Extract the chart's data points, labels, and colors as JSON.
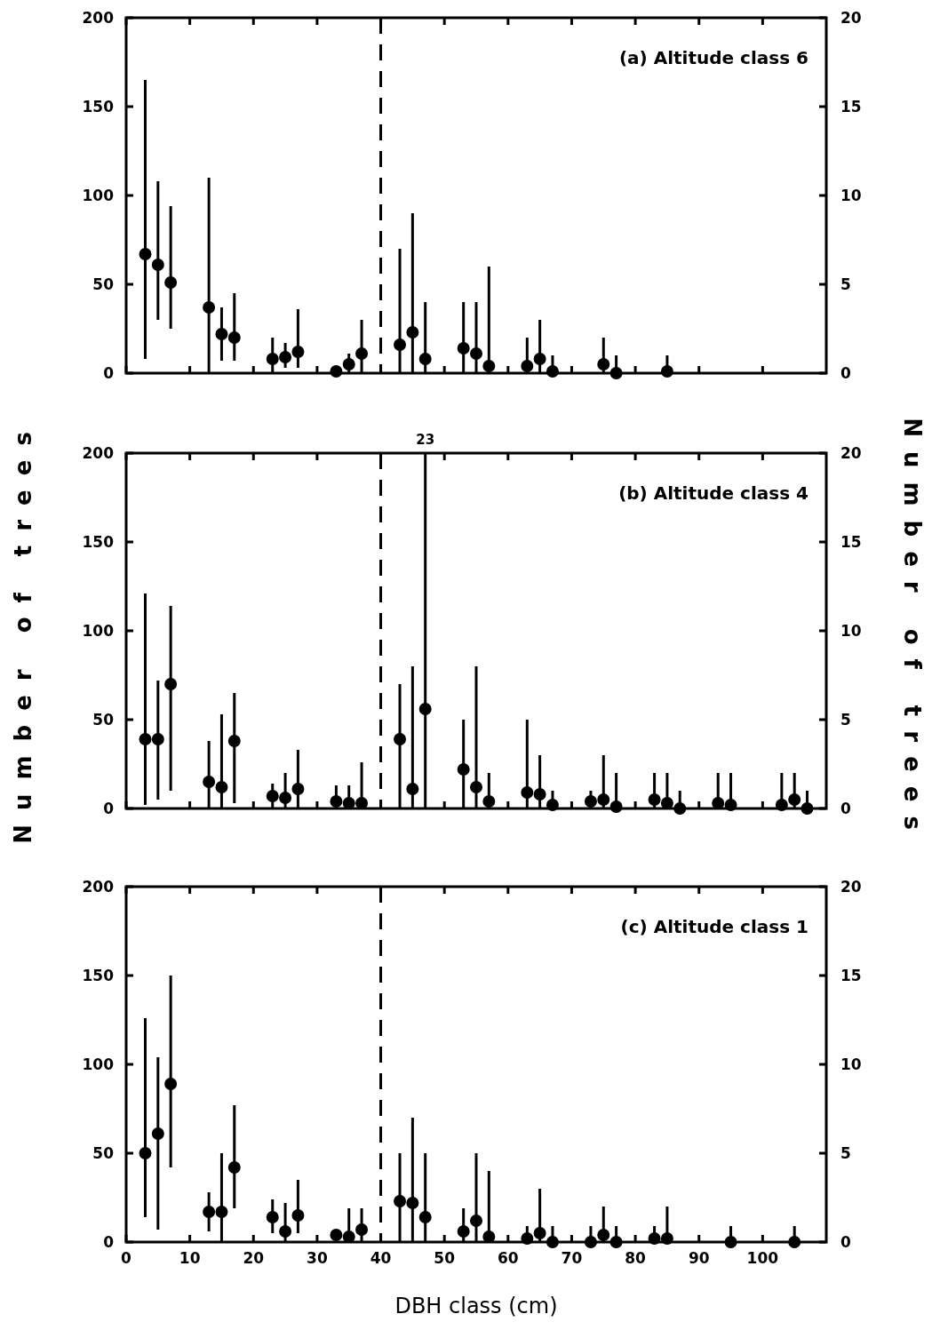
{
  "chart_data": [
    {
      "type": "scatter",
      "title": "(a) Altitude class 6",
      "xlim": [
        0,
        110
      ],
      "xticks": [
        0,
        10,
        20,
        30,
        40,
        50,
        60,
        70,
        80,
        90,
        100
      ],
      "ylim": [
        0,
        200
      ],
      "yticks": [
        0,
        50,
        100,
        150,
        200
      ],
      "y2lim": [
        0,
        20
      ],
      "y2ticks": [
        0,
        5,
        10,
        15,
        20
      ],
      "tick_labels": "y",
      "grid": false,
      "marker": "circle",
      "ref_lines": [
        {
          "axis": "x",
          "value": 40,
          "line_style": "dashed",
          "color": "#000000"
        }
      ],
      "series": [
        {
          "color": "#000000",
          "x": [
            3,
            5,
            7,
            13,
            15,
            17,
            23,
            25,
            27,
            33,
            35,
            37
          ],
          "values": [
            67,
            61,
            51,
            37,
            22,
            20,
            8,
            9,
            12,
            1,
            5,
            11
          ],
          "errors": [
            [
              8,
              165
            ],
            [
              30,
              108
            ],
            [
              25,
              94
            ],
            [
              0,
              110
            ],
            [
              7,
              37
            ],
            [
              7,
              45
            ],
            [
              0,
              20
            ],
            [
              3,
              17
            ],
            [
              3,
              36
            ],
            [
              1,
              3
            ],
            [
              0,
              11
            ],
            [
              0,
              30
            ]
          ]
        },
        {
          "color": "#000000",
          "axis": "y2",
          "x": [
            43,
            45,
            47,
            53,
            55,
            57,
            63,
            65,
            67,
            75,
            77,
            85
          ],
          "values": [
            1.6,
            2.3,
            0.8,
            1.4,
            1.1,
            0.4,
            0.4,
            0.8,
            0.1,
            0.5,
            0,
            0.1
          ],
          "errors": [
            [
              0,
              7
            ],
            [
              0,
              9
            ],
            [
              0,
              4
            ],
            [
              0,
              4
            ],
            [
              0,
              4
            ],
            [
              0,
              6
            ],
            [
              0,
              2
            ],
            [
              0,
              3
            ],
            [
              0.1,
              1
            ],
            [
              0,
              2
            ],
            [
              0,
              1
            ],
            [
              0.1,
              1
            ]
          ]
        }
      ]
    },
    {
      "type": "scatter",
      "title": "(b) Altitude class 4",
      "ylabel": "Number of trees",
      "y2label": "Number of trees",
      "xlim": [
        0,
        110
      ],
      "xticks": [
        0,
        10,
        20,
        30,
        40,
        50,
        60,
        70,
        80,
        90,
        100
      ],
      "ylim": [
        0,
        200
      ],
      "yticks": [
        0,
        50,
        100,
        150,
        200
      ],
      "y2lim": [
        0,
        20
      ],
      "y2ticks": [
        0,
        5,
        10,
        15,
        20
      ],
      "tick_labels": "y",
      "grid": false,
      "marker": "circle",
      "ref_lines": [
        {
          "axis": "x",
          "value": 40,
          "line_style": "dashed",
          "color": "#000000"
        }
      ],
      "annotations": [
        {
          "text": "23",
          "x": 47,
          "y": 200
        }
      ],
      "series": [
        {
          "color": "#000000",
          "x": [
            3,
            5,
            7,
            13,
            15,
            17,
            23,
            25,
            27,
            33,
            35,
            37
          ],
          "values": [
            39,
            39,
            70,
            15,
            12,
            38,
            7,
            6,
            11,
            4,
            3,
            3
          ],
          "errors": [
            [
              2,
              121
            ],
            [
              5,
              72
            ],
            [
              10,
              114
            ],
            [
              0,
              38
            ],
            [
              0,
              53
            ],
            [
              3,
              65
            ],
            [
              0,
              14
            ],
            [
              0,
              20
            ],
            [
              0,
              33
            ],
            [
              0,
              13
            ],
            [
              0,
              13
            ],
            [
              0,
              26
            ]
          ]
        },
        {
          "color": "#000000",
          "axis": "y2",
          "x": [
            43,
            45,
            47,
            53,
            55,
            57,
            63,
            65,
            67,
            73,
            75,
            77,
            83,
            85,
            87,
            93,
            95,
            103,
            105,
            107
          ],
          "values": [
            3.9,
            1.1,
            5.6,
            2.2,
            1.2,
            0.4,
            0.9,
            0.8,
            0.2,
            0.4,
            0.5,
            0.1,
            0.5,
            0.3,
            0,
            0.3,
            0.2,
            0.2,
            0.5,
            0
          ],
          "errors": [
            [
              0,
              7
            ],
            [
              0,
              8
            ],
            [
              0,
              20
            ],
            [
              0,
              5
            ],
            [
              0,
              8
            ],
            [
              0,
              2
            ],
            [
              0,
              5
            ],
            [
              0,
              3
            ],
            [
              0,
              1
            ],
            [
              0,
              1
            ],
            [
              0,
              3
            ],
            [
              0.1,
              2
            ],
            [
              0,
              2
            ],
            [
              0,
              2
            ],
            [
              0,
              1
            ],
            [
              0,
              2
            ],
            [
              0,
              2
            ],
            [
              0,
              2
            ],
            [
              0,
              2
            ],
            [
              0,
              1
            ]
          ]
        }
      ]
    },
    {
      "type": "scatter",
      "title": "(c) Altitude class 1",
      "xlabel": "DBH class (cm)",
      "xlim": [
        0,
        110
      ],
      "xticks": [
        0,
        10,
        20,
        30,
        40,
        50,
        60,
        70,
        80,
        90,
        100
      ],
      "ylim": [
        0,
        200
      ],
      "yticks": [
        0,
        50,
        100,
        150,
        200
      ],
      "y2lim": [
        0,
        20
      ],
      "y2ticks": [
        0,
        5,
        10,
        15,
        20
      ],
      "grid": false,
      "marker": "circle",
      "ref_lines": [
        {
          "axis": "x",
          "value": 40,
          "line_style": "dashed",
          "color": "#000000"
        }
      ],
      "series": [
        {
          "color": "#000000",
          "x": [
            3,
            5,
            7,
            13,
            15,
            17,
            23,
            25,
            27,
            33,
            35,
            37
          ],
          "values": [
            50,
            61,
            89,
            17,
            17,
            42,
            14,
            6,
            15,
            4,
            3,
            7
          ],
          "errors": [
            [
              14,
              126
            ],
            [
              7,
              104
            ],
            [
              42,
              150
            ],
            [
              6,
              28
            ],
            [
              0,
              50
            ],
            [
              19,
              77
            ],
            [
              5,
              24
            ],
            [
              0,
              22
            ],
            [
              5,
              35
            ],
            null,
            [
              0,
              19
            ],
            [
              0,
              19
            ]
          ]
        },
        {
          "color": "#000000",
          "axis": "y2",
          "x": [
            43,
            45,
            47,
            53,
            55,
            57,
            63,
            65,
            67,
            73,
            75,
            77,
            83,
            85,
            95,
            105
          ],
          "values": [
            2.3,
            2.2,
            1.4,
            0.6,
            1.2,
            0.3,
            0.2,
            0.5,
            0,
            0,
            0.4,
            0,
            0.2,
            0.2,
            0,
            0
          ],
          "errors": [
            [
              0,
              5
            ],
            [
              0,
              7
            ],
            [
              0,
              5
            ],
            [
              0,
              1.9
            ],
            [
              0,
              5
            ],
            [
              0,
              4
            ],
            [
              0,
              0.9
            ],
            [
              0,
              3
            ],
            [
              0,
              0.9
            ],
            [
              0,
              0.9
            ],
            [
              0,
              2
            ],
            [
              0,
              0.9
            ],
            [
              0,
              0.9
            ],
            [
              0,
              2
            ],
            [
              0,
              0.9
            ],
            [
              0,
              0.9
            ]
          ]
        }
      ]
    }
  ]
}
